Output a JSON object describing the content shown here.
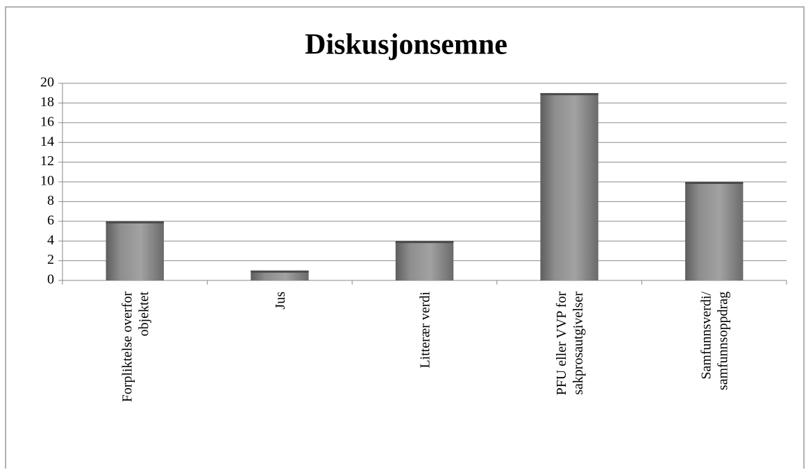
{
  "chart_data": {
    "type": "bar",
    "title": "Diskusjonsemne",
    "categories": [
      "Forpliktelse overfor\nobjektet",
      "Jus",
      "Litterær verdi",
      "PFU eller VVP for\nsakprosautgivelser",
      "Samfunnsverdi/\nsamfunnsoppdrag"
    ],
    "values": [
      6,
      1,
      4,
      19,
      10
    ],
    "color": "#8c8c8c",
    "ylim": [
      0,
      20
    ],
    "yticks": [
      0,
      2,
      4,
      6,
      8,
      10,
      12,
      14,
      16,
      18,
      20
    ],
    "grid": true
  }
}
